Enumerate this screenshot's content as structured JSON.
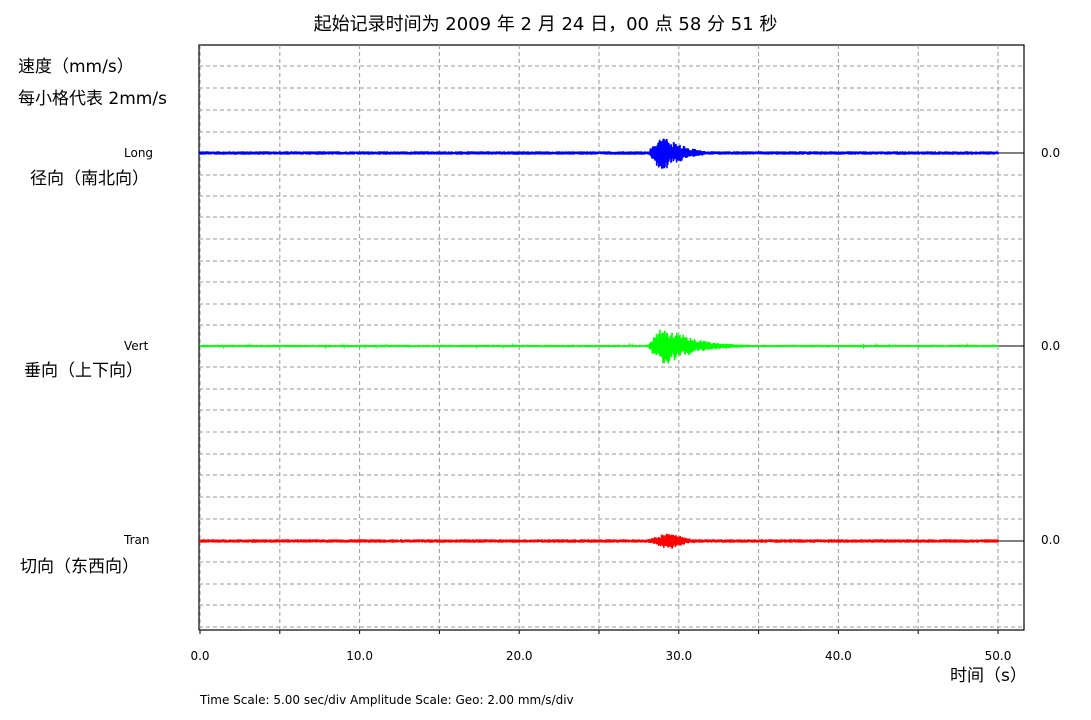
{
  "title": "起始记录时间为 2009 年 2 月 24 日，00 点 58 分 51 秒",
  "ylabel_line1": "速度（mm/s）",
  "ylabel_line2": "每小格代表 2mm/s",
  "xunit": "时间（s）",
  "footer": "Time Scale: 5.00 sec/div   Amplitude Scale: Geo: 2.00 mm/s/div",
  "colors": {
    "long": "#0000ff",
    "vert": "#00ff00",
    "tran": "#ff0000",
    "grid": "#9a9a9a",
    "axis": "#000000"
  },
  "chart_data": {
    "type": "line",
    "x": {
      "label": "时间（s）",
      "range": [
        0,
        50
      ],
      "ticks": [
        "0.0",
        "10.0",
        "20.0",
        "30.0",
        "40.0",
        "50.0"
      ],
      "minor_step": 5
    },
    "y_scale": "2 mm/s per division",
    "grid": true,
    "series": [
      {
        "key": "long",
        "name": "Long",
        "description": "径向（南北向）",
        "zero_label": "0.0",
        "color": "#0000ff",
        "noise_amplitude": 0.08,
        "event": {
          "start": 28.0,
          "peak": 29.0,
          "end": 33.0,
          "peak_amplitude": 1.0
        }
      },
      {
        "key": "vert",
        "name": "Vert",
        "description": "垂向（上下向）",
        "zero_label": "0.0",
        "color": "#00ff00",
        "noise_amplitude": 0.05,
        "event": {
          "start": 28.0,
          "peak": 29.0,
          "end": 35.0,
          "peak_amplitude": 1.1
        }
      },
      {
        "key": "tran",
        "name": "Tran",
        "description": "切向（东西向）",
        "zero_label": "0.0",
        "color": "#ff0000",
        "noise_amplitude": 0.08,
        "event": {
          "start": 27.8,
          "peak": 29.5,
          "end": 32.5,
          "peak_amplitude": 0.5
        }
      }
    ]
  }
}
